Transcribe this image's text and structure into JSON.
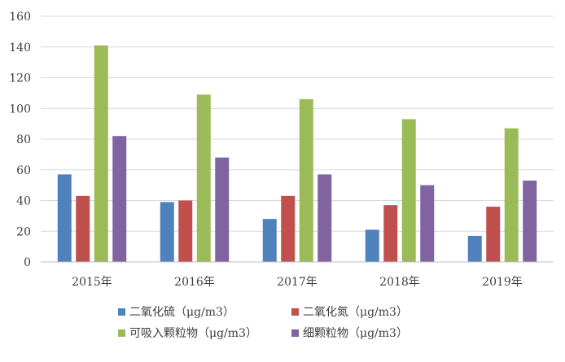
{
  "chart_data": {
    "type": "bar",
    "categories": [
      "2015年",
      "2016年",
      "2017年",
      "2018年",
      "2019年"
    ],
    "series": [
      {
        "name": "二氧化硫（μg/m3）",
        "color": "#4F81BD",
        "values": [
          57,
          39,
          28,
          21,
          17
        ]
      },
      {
        "name": "二氧化氮（μg/m3）",
        "color": "#C0504D",
        "values": [
          43,
          40,
          43,
          37,
          36
        ]
      },
      {
        "name": "可吸入颗粒物（μg/m3）",
        "color": "#9BBB59",
        "values": [
          141,
          109,
          106,
          93,
          87
        ]
      },
      {
        "name": "细颗粒物（μg/m3）",
        "color": "#8064A2",
        "values": [
          82,
          68,
          57,
          50,
          53
        ]
      }
    ],
    "title": "",
    "xlabel": "",
    "ylabel": "",
    "ylim": [
      0,
      160
    ],
    "yticks": [
      0,
      20,
      40,
      60,
      80,
      100,
      120,
      140,
      160
    ],
    "grid": true,
    "legend_position": "bottom"
  }
}
